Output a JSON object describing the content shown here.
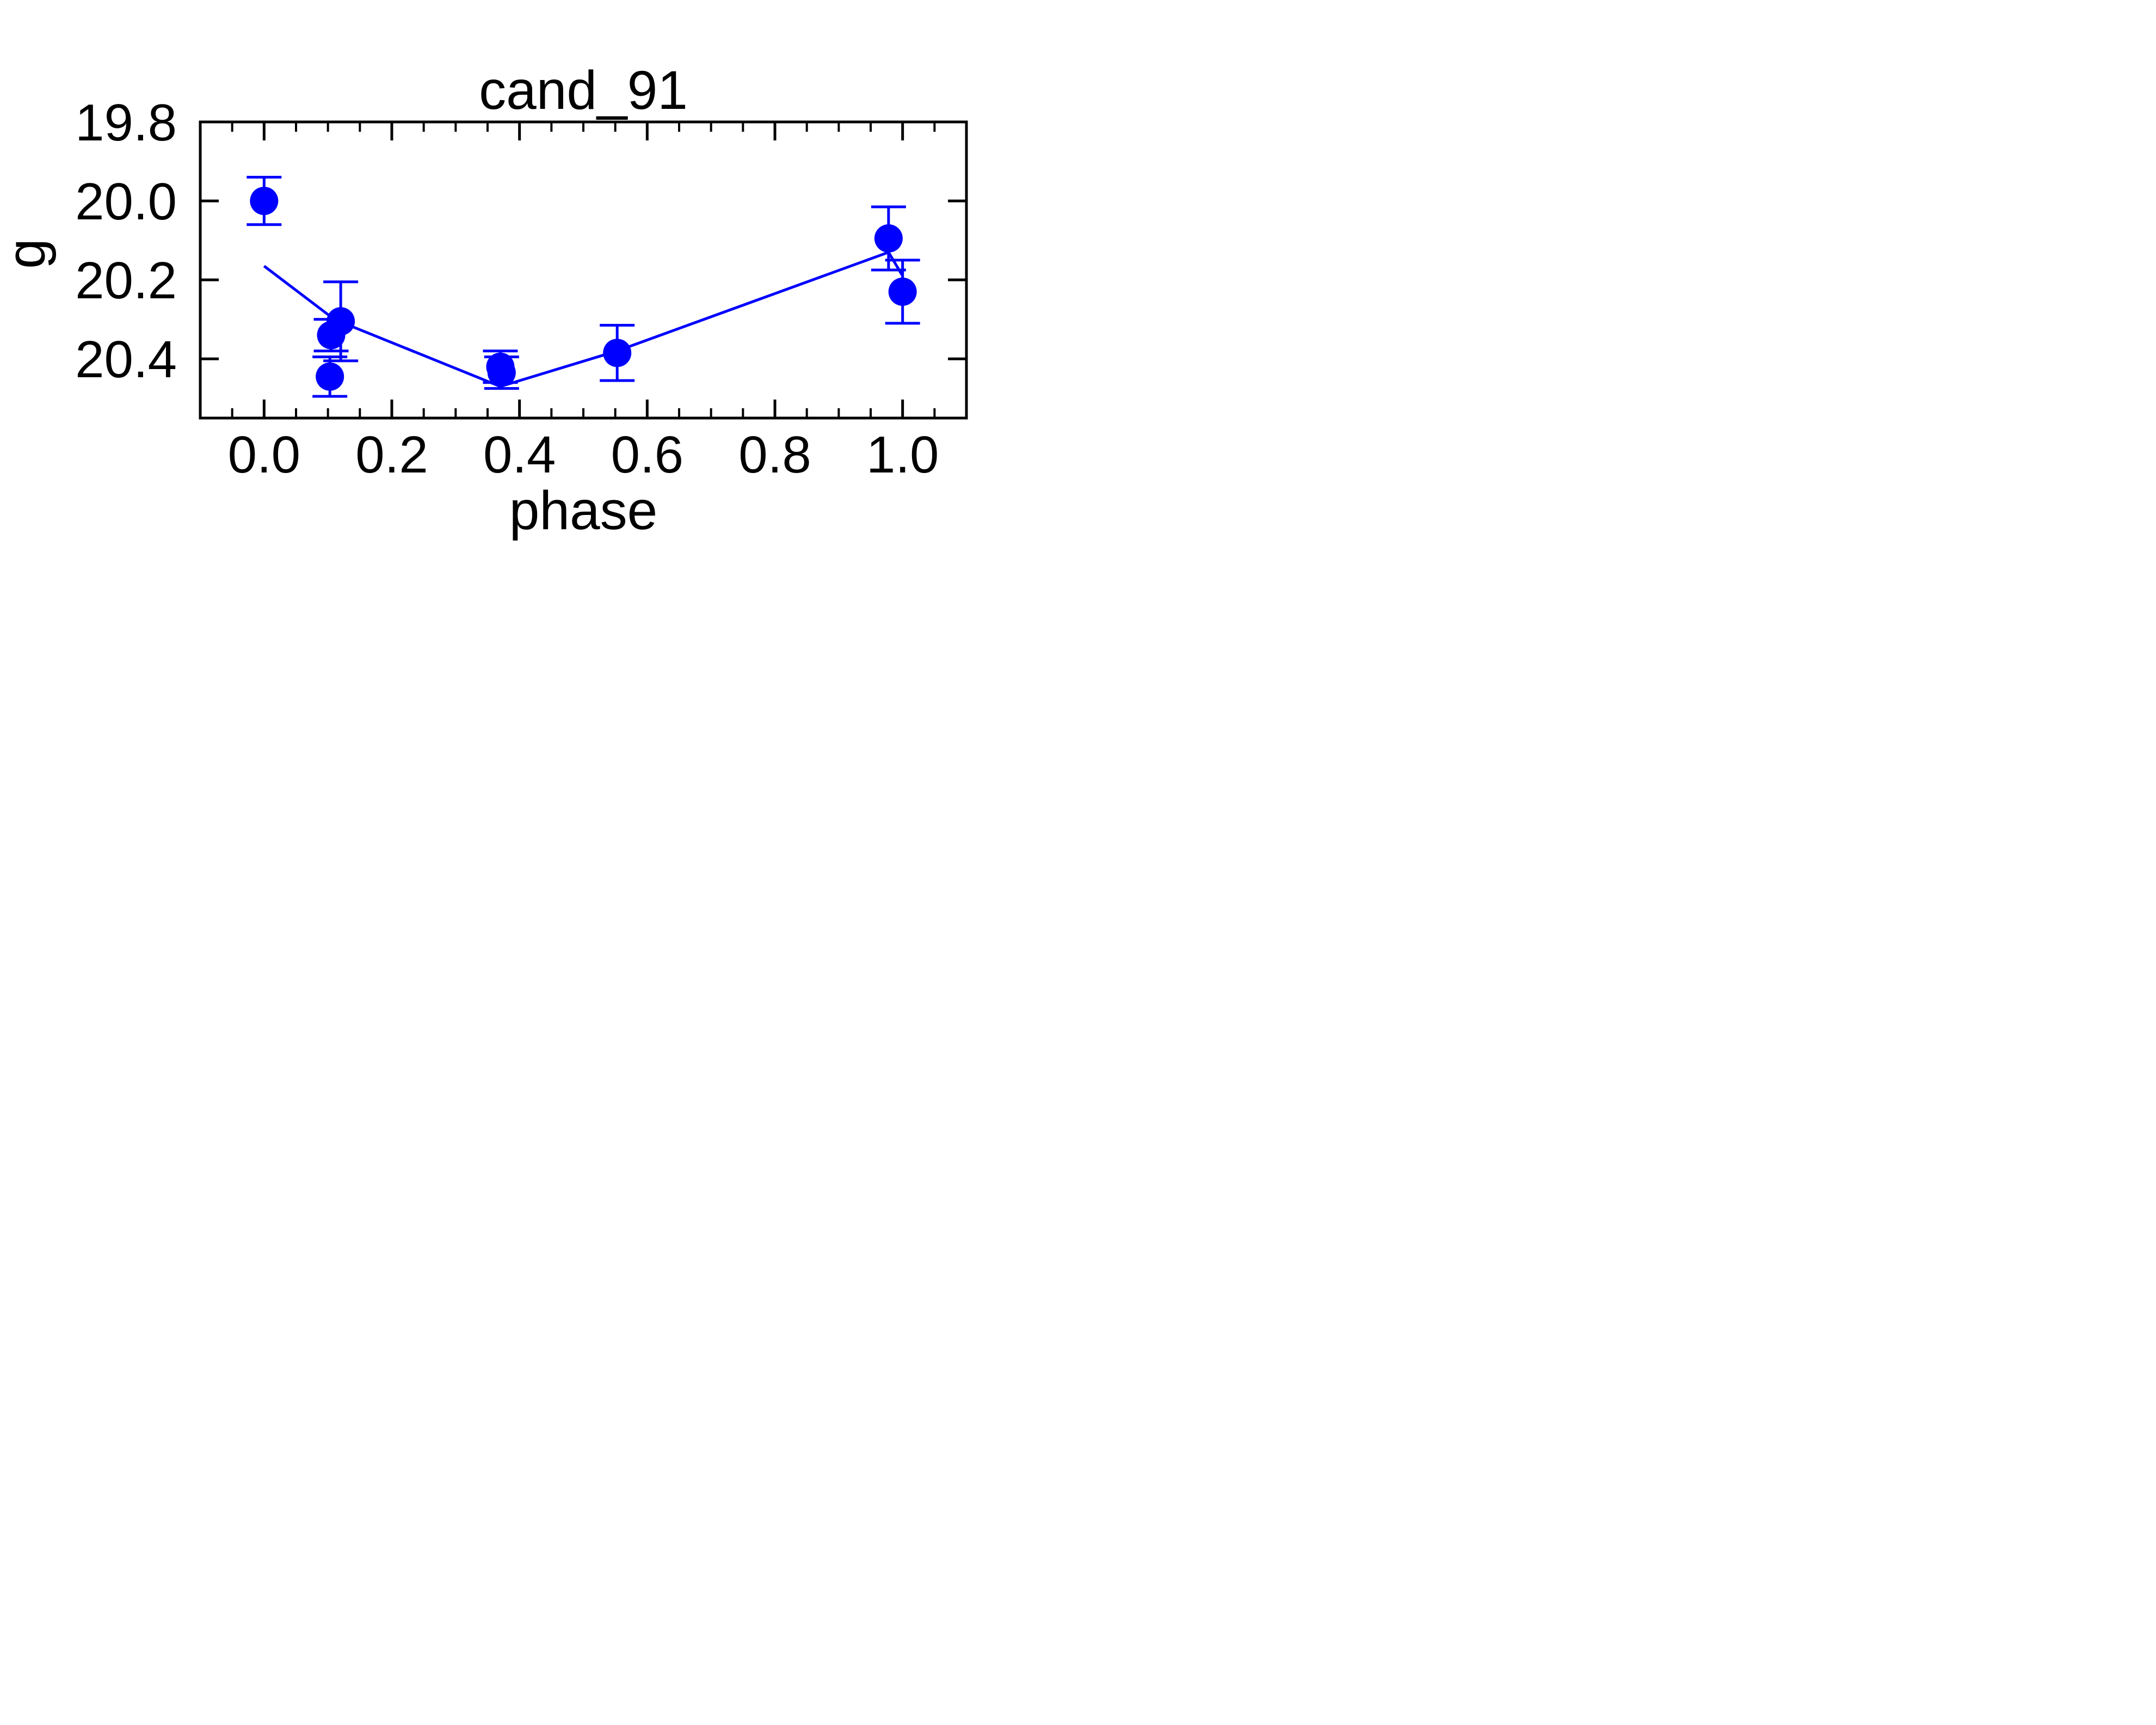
{
  "chart_data": {
    "type": "scatter",
    "title": "cand_91",
    "xlabel": "phase",
    "ylabel": "g",
    "xlim": [
      -0.1,
      1.1
    ],
    "ylim": [
      20.55,
      19.8
    ],
    "y_inverted": true,
    "grid": false,
    "x_ticks": [
      "0.0",
      "0.2",
      "0.4",
      "0.6",
      "0.8",
      "1.0"
    ],
    "y_ticks": [
      "19.8",
      "20.0",
      "20.2",
      "20.4"
    ],
    "series": [
      {
        "kind": "points",
        "color": "#0000ff",
        "x": [
          0.0,
          0.103,
          0.105,
          0.12,
          0.37,
          0.372,
          0.553,
          0.978,
          1.0
        ],
        "y": [
          20.0,
          20.445,
          20.34,
          20.305,
          20.42,
          20.435,
          20.385,
          20.095,
          20.23
        ],
        "err": [
          0.06,
          0.05,
          0.04,
          0.1,
          0.04,
          0.04,
          0.07,
          0.08,
          0.08
        ]
      },
      {
        "kind": "line",
        "color": "#0000ff",
        "x": [
          0.0,
          0.11,
          0.37,
          0.553,
          0.978,
          1.0
        ],
        "y": [
          20.165,
          20.3,
          20.47,
          20.38,
          20.13,
          20.19
        ]
      }
    ]
  }
}
